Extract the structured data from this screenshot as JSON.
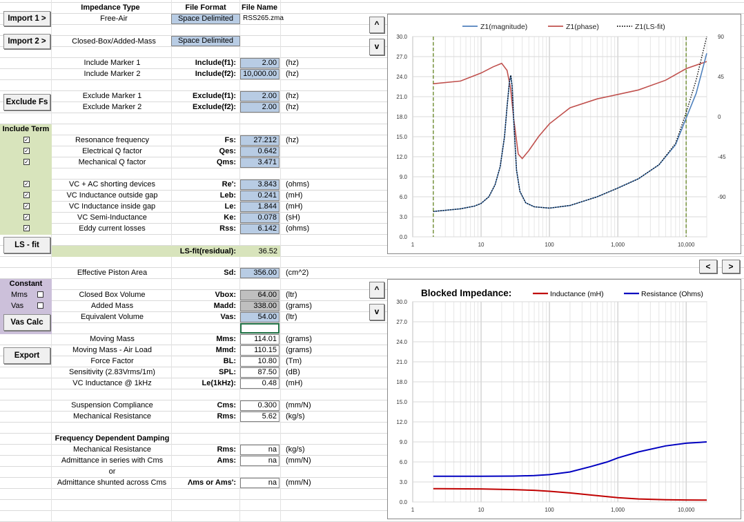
{
  "headers": {
    "impedance_type": "Impedance Type",
    "file_format": "File Format",
    "file_name": "File Name"
  },
  "import1": {
    "button": "Import 1 >",
    "type": "Free-Air",
    "format": "Space Delimited",
    "file": "RSS265.zma"
  },
  "import2": {
    "button": "Import 2 >",
    "type": "Closed-Box/Added-Mass",
    "format": "Space Delimited"
  },
  "include_markers": [
    {
      "label": "Include Marker 1",
      "key": "Include(f1):",
      "value": "2.00",
      "unit": "(hz)"
    },
    {
      "label": "Include Marker 2",
      "key": "Include(f2):",
      "value": "10,000.00",
      "unit": "(hz)"
    }
  ],
  "exclude_button": "Exclude Fs",
  "exclude_markers": [
    {
      "label": "Exclude Marker 1",
      "key": "Exclude(f1):",
      "value": "2.00",
      "unit": "(hz)"
    },
    {
      "label": "Exclude Marker 2",
      "key": "Exclude(f2):",
      "value": "2.00",
      "unit": "(hz)"
    }
  ],
  "include_term_label": "Include Term",
  "group1": [
    {
      "label": "Resonance frequency",
      "key": "Fs:",
      "value": "27.212",
      "unit": "(hz)",
      "checked": "✓"
    },
    {
      "label": "Electrical Q factor",
      "key": "Qes:",
      "value": "0.642",
      "unit": "",
      "checked": "✓"
    },
    {
      "label": "Mechanical Q factor",
      "key": "Qms:",
      "value": "3.471",
      "unit": "",
      "checked": "✓"
    }
  ],
  "group2": [
    {
      "label": "VC + AC shorting devices",
      "key": "Re':",
      "value": "3.843",
      "unit": "(ohms)",
      "checked": "✓"
    },
    {
      "label": "VC Inductance outside gap",
      "key": "Leb:",
      "value": "0.241",
      "unit": "(mH)",
      "checked": "✓"
    },
    {
      "label": "VC Inductance inside gap",
      "key": "Le:",
      "value": "1.844",
      "unit": "(mH)",
      "checked": "✓"
    },
    {
      "label": "VC Semi-Inductance",
      "key": "Ke:",
      "value": "0.078",
      "unit": "(sH)",
      "checked": "✓"
    },
    {
      "label": "Eddy current losses",
      "key": "Rss:",
      "value": "6.142",
      "unit": "(ohms)",
      "checked": "✓"
    }
  ],
  "lsfit": {
    "button": "LS - fit",
    "key": "LS-fit(residual):",
    "value": "36.52"
  },
  "piston": {
    "label": "Effective Piston Area",
    "key": "Sd:",
    "value": "356.00",
    "unit": "(cm^2)"
  },
  "constant": {
    "title": "Constant",
    "mms": "Mms",
    "vas": "Vas",
    "button": "Vas Calc"
  },
  "box_rows": [
    {
      "label": "Closed Box Volume",
      "key": "Vbox:",
      "value": "64.00",
      "unit": "(ltr)",
      "style": "gray"
    },
    {
      "label": "Added Mass",
      "key": "Madd:",
      "value": "338.00",
      "unit": "(grams)",
      "style": "gray"
    },
    {
      "label": "Equivalent Volume",
      "key": "Vas:",
      "value": "54.00",
      "unit": "(ltr)",
      "style": "blue"
    }
  ],
  "export_button": "Export",
  "mass_rows": [
    {
      "label": "Moving Mass",
      "key": "Mms:",
      "value": "114.01",
      "unit": "(grams)"
    },
    {
      "label": "Moving Mass - Air Load",
      "key": "Mmd:",
      "value": "110.15",
      "unit": "(grams)"
    },
    {
      "label": "Force Factor",
      "key": "BL:",
      "value": "10.80",
      "unit": "(Tm)"
    },
    {
      "label": "Sensitivity (2.83Vrms/1m)",
      "key": "SPL:",
      "value": "87.50",
      "unit": "(dB)"
    },
    {
      "label": "VC Inductance @ 1kHz",
      "key": "Le(1kHz):",
      "value": "0.48",
      "unit": "(mH)"
    }
  ],
  "susp_rows": [
    {
      "label": "Suspension Compliance",
      "key": "Cms:",
      "value": "0.300",
      "unit": "(mm/N)"
    },
    {
      "label": "Mechanical Resistance",
      "key": "Rms:",
      "value": "5.62",
      "unit": "(kg/s)"
    }
  ],
  "fdd": {
    "title": "Frequency Dependent Damping",
    "rows": [
      {
        "label": "Mechanical Resistance",
        "key": "Rms:",
        "value": "na",
        "unit": "(kg/s)"
      },
      {
        "label": "Admittance in series with Cms",
        "key": "Ams:",
        "value": "na",
        "unit": "(mm/N)"
      },
      {
        "label": "or",
        "key": "",
        "value": "",
        "unit": ""
      },
      {
        "label": "Admittance shunted across Cms",
        "key": "Λms or Ams':",
        "value": "na",
        "unit": "(mm/N)"
      }
    ]
  },
  "nav": {
    "up": "^",
    "down": "v",
    "prev": "<",
    "next": ">"
  },
  "chart_data": [
    {
      "type": "line",
      "legend": [
        "Z1(magnitude)",
        "Z1(phase)",
        "Z1(LS-fit)"
      ],
      "legend_position": "top",
      "colors": {
        "magnitude": "#4f81bd",
        "phase": "#c0504d",
        "fit": "#000000",
        "marker": "#76933c"
      },
      "x_scale": "log",
      "xlim": [
        1,
        20000
      ],
      "x_ticks": [
        "1",
        "10",
        "100",
        "1,000",
        "10,000"
      ],
      "ylim": [
        0,
        30
      ],
      "y_ticks": [
        "0.0",
        "3.0",
        "6.0",
        "9.0",
        "12.0",
        "15.0",
        "18.0",
        "21.0",
        "24.0",
        "27.0",
        "30.0"
      ],
      "y2lim": [
        -135,
        90
      ],
      "y2_ticks": [
        "90",
        "45",
        "0",
        "-45",
        "-90"
      ],
      "markers_x": [
        2,
        10000
      ],
      "magnitude": {
        "x": [
          2,
          5,
          8,
          10,
          13,
          16,
          19,
          22,
          24,
          26,
          27.2,
          28.5,
          30,
          33,
          37,
          45,
          60,
          100,
          200,
          500,
          1000,
          2000,
          4000,
          7000,
          10000,
          14000,
          20000
        ],
        "y": [
          3.8,
          4.2,
          4.6,
          5.0,
          6.0,
          7.8,
          10.5,
          15.0,
          19.5,
          23.2,
          24.2,
          22.5,
          17.5,
          10.0,
          6.8,
          5.1,
          4.5,
          4.3,
          4.7,
          6.0,
          7.3,
          8.7,
          10.8,
          13.8,
          17.8,
          21.5,
          27.5
        ]
      },
      "phase": {
        "x": [
          2,
          5,
          10,
          15,
          20,
          24,
          27,
          30,
          35,
          40,
          50,
          70,
          100,
          200,
          500,
          1000,
          2000,
          5000,
          10000,
          20000
        ],
        "y": [
          37,
          40,
          49,
          56,
          60,
          52,
          32,
          -2,
          -42,
          -47,
          -38,
          -22,
          -8,
          10,
          20,
          25,
          30,
          41,
          54,
          62
        ]
      },
      "fit": {
        "x": [
          2,
          5,
          8,
          10,
          13,
          16,
          19,
          22,
          24,
          26,
          27.2,
          28.5,
          30,
          33,
          37,
          45,
          60,
          100,
          200,
          500,
          1000,
          2000,
          4000,
          7000,
          10000,
          14000,
          20000
        ],
        "y": [
          3.8,
          4.2,
          4.6,
          5.0,
          6.0,
          7.8,
          10.5,
          15.0,
          19.5,
          23.2,
          24.2,
          22.5,
          17.5,
          10.0,
          6.8,
          5.1,
          4.5,
          4.3,
          4.7,
          6.0,
          7.3,
          8.7,
          10.8,
          14.0,
          18.6,
          23.5,
          30.0
        ]
      }
    },
    {
      "type": "line",
      "title": "Blocked Impedance:",
      "legend": [
        "Inductance (mH)",
        "Resistance (Ohms)"
      ],
      "legend_position": "top",
      "colors": {
        "inductance": "#c00000",
        "resistance": "#0000c0"
      },
      "x_scale": "log",
      "xlim": [
        1,
        20000
      ],
      "x_ticks": [
        "1",
        "10",
        "100",
        "1,000",
        "10,000"
      ],
      "ylim": [
        0,
        30
      ],
      "y_ticks": [
        "0.0",
        "3.0",
        "6.0",
        "9.0",
        "12.0",
        "15.0",
        "18.0",
        "21.0",
        "24.0",
        "27.0",
        "30.0"
      ],
      "inductance": {
        "x": [
          2,
          10,
          30,
          60,
          100,
          200,
          400,
          700,
          1000,
          2000,
          5000,
          10000,
          20000
        ],
        "y": [
          2.0,
          1.95,
          1.85,
          1.75,
          1.6,
          1.35,
          1.05,
          0.8,
          0.65,
          0.45,
          0.33,
          0.3,
          0.28
        ]
      },
      "resistance": {
        "x": [
          2,
          10,
          30,
          60,
          100,
          200,
          400,
          700,
          1000,
          2000,
          5000,
          10000,
          20000
        ],
        "y": [
          3.85,
          3.85,
          3.88,
          3.95,
          4.1,
          4.5,
          5.3,
          6.0,
          6.6,
          7.5,
          8.4,
          8.8,
          9.0
        ]
      }
    }
  ]
}
